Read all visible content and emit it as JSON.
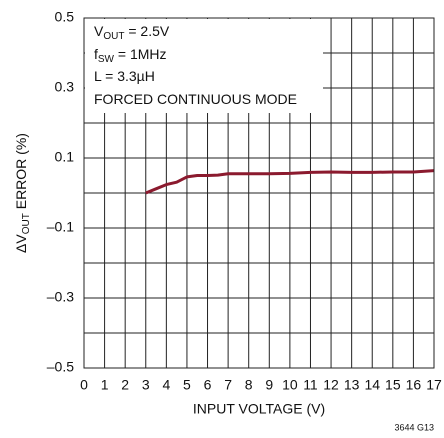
{
  "chart_data": {
    "type": "line",
    "x_label": "INPUT VOLTAGE (V)",
    "y_label": [
      {
        "t": "ΔV"
      },
      {
        "t": "OUT",
        "sub": true
      },
      {
        "t": " ERROR  (%)"
      }
    ],
    "annotations": [
      [
        {
          "t": "V"
        },
        {
          "t": "OUT",
          "sub": true
        },
        {
          "t": " = 2.5V"
        }
      ],
      [
        {
          "t": "f"
        },
        {
          "t": "SW",
          "sub": true
        },
        {
          "t": " = 1MHz"
        }
      ],
      [
        {
          "t": "L = 3.3µH"
        }
      ],
      [
        {
          "t": "FORCED CONTINUOUS MODE"
        }
      ]
    ],
    "note": "3644 G13",
    "x": [
      3,
      3.5,
      4,
      4.5,
      5,
      5.5,
      6,
      6.5,
      7,
      8,
      9,
      10,
      11,
      12,
      13,
      14,
      15,
      16,
      17
    ],
    "series": [
      {
        "color": "#8b1a2e",
        "values": [
          0.0,
          0.012,
          0.024,
          0.031,
          0.046,
          0.05,
          0.05,
          0.051,
          0.055,
          0.055,
          0.055,
          0.056,
          0.059,
          0.06,
          0.059,
          0.059,
          0.06,
          0.06,
          0.064
        ]
      }
    ],
    "xlim": [
      0,
      17
    ],
    "ylim": [
      -0.5,
      0.5
    ],
    "xticks": [
      0,
      1,
      2,
      3,
      4,
      5,
      6,
      7,
      8,
      9,
      10,
      11,
      12,
      13,
      14,
      15,
      16,
      17
    ],
    "yticks": [
      {
        "value": -0.5,
        "label": "–0.5"
      },
      {
        "value": -0.3,
        "label": "–0.3"
      },
      {
        "value": -0.1,
        "label": "–0.1"
      },
      0.1,
      0.3,
      0.5
    ],
    "yminor": [
      -0.4,
      -0.2,
      0,
      0.2,
      0.4
    ],
    "grid": true
  }
}
